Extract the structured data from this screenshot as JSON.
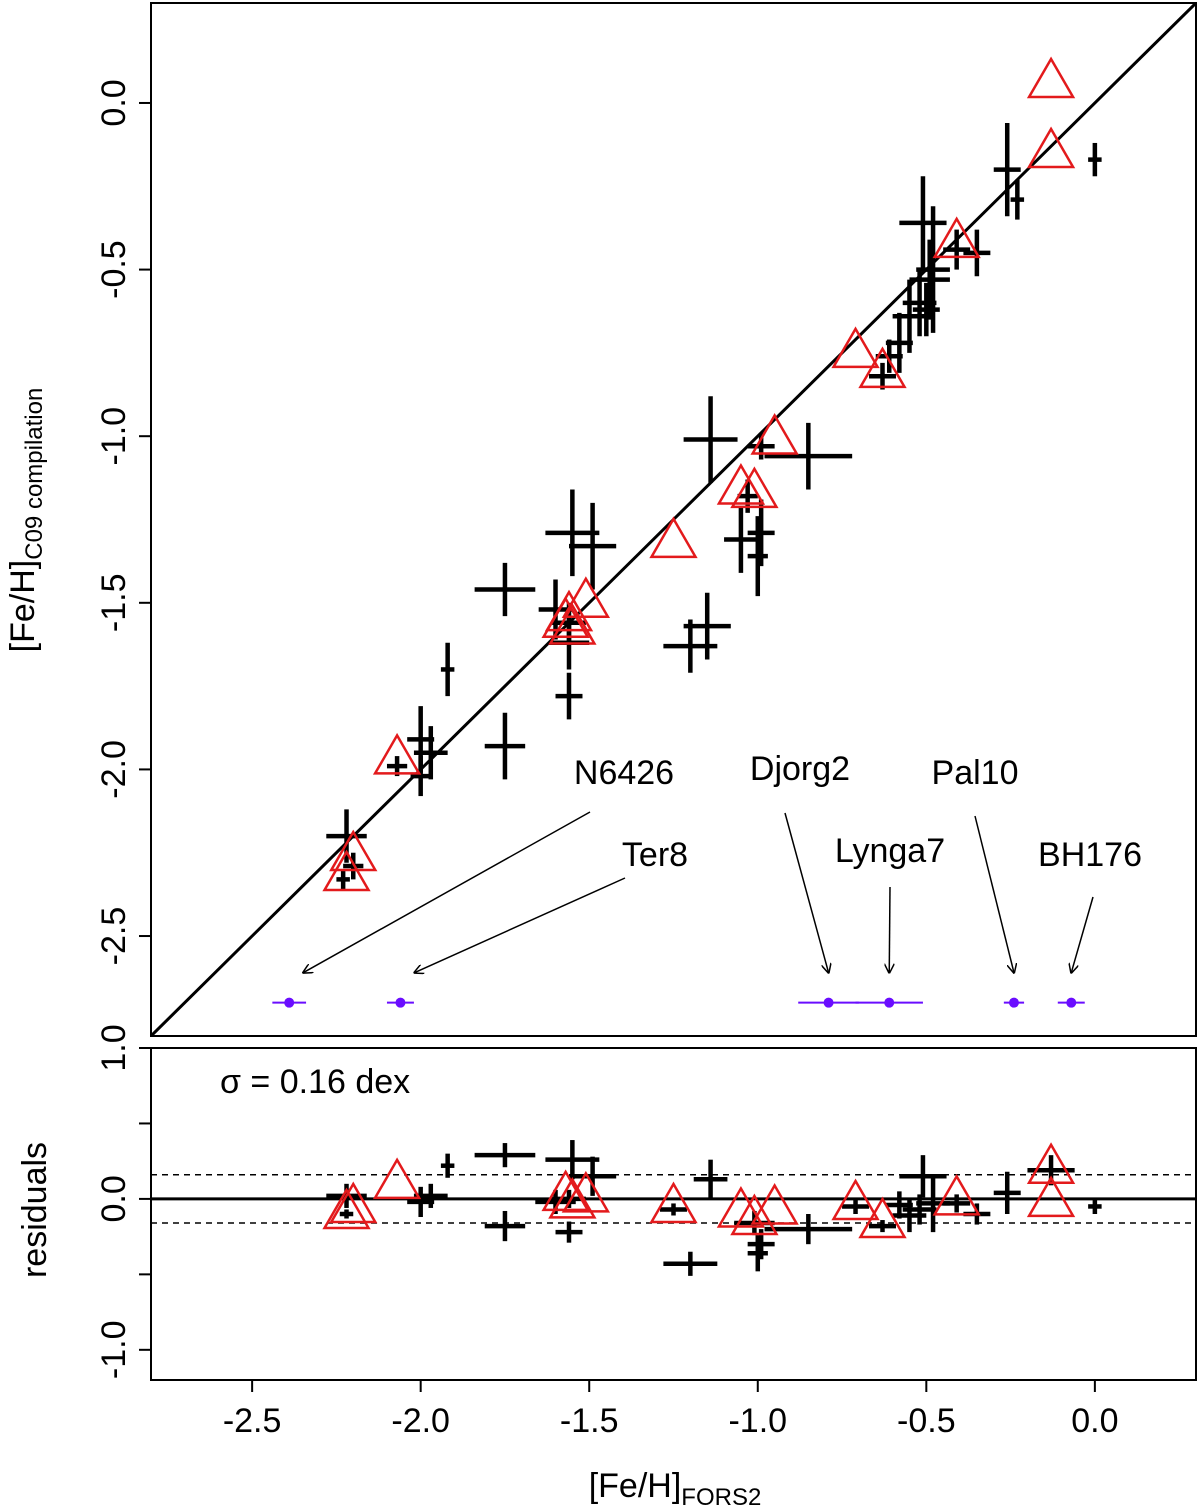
{
  "chart_data": [
    {
      "type": "scatter",
      "panel": "main",
      "xlabel_main": "[Fe/H]",
      "xlabel_sub": "FORS2",
      "ylabel_main": "[Fe/H]",
      "ylabel_sub": "C09 compilation",
      "xlim": [
        -2.8,
        0.3
      ],
      "ylim": [
        -2.8,
        0.3
      ],
      "x_ticks": [
        "-2.5",
        "-2.0",
        "-1.5",
        "-1.0",
        "-0.5",
        "0.0"
      ],
      "x_tick_values": [
        -2.5,
        -2.0,
        -1.5,
        -1.0,
        -0.5,
        0.0
      ],
      "y_ticks": [
        "-2.5",
        "-2.0",
        "-1.5",
        "-1.0",
        "-0.5",
        "0.0"
      ],
      "y_tick_values": [
        -2.5,
        -2.0,
        -1.5,
        -1.0,
        -0.5,
        0.0
      ],
      "identity_line": true,
      "colors": {
        "points": "#000000",
        "triangles": "#e31a1c",
        "upper_limits": "#6a0dff"
      },
      "series": [
        {
          "marker": "cross",
          "points": [
            {
              "x": 0.0,
              "y": -0.17,
              "xerr": 0.02,
              "yerr": 0.05
            },
            {
              "x": -0.26,
              "y": -0.2,
              "xerr": 0.04,
              "yerr": 0.14
            },
            {
              "x": -0.23,
              "y": -0.29,
              "xerr": 0.02,
              "yerr": 0.06
            },
            {
              "x": -0.51,
              "y": -0.36,
              "xerr": 0.07,
              "yerr": 0.14
            },
            {
              "x": -0.48,
              "y": -0.5,
              "xerr": 0.05,
              "yerr": 0.19
            },
            {
              "x": -0.49,
              "y": -0.53,
              "xerr": 0.06,
              "yerr": 0.12
            },
            {
              "x": -0.52,
              "y": -0.6,
              "xerr": 0.05,
              "yerr": 0.1
            },
            {
              "x": -0.5,
              "y": -0.62,
              "xerr": 0.04,
              "yerr": 0.08
            },
            {
              "x": -0.55,
              "y": -0.64,
              "xerr": 0.05,
              "yerr": 0.11
            },
            {
              "x": -0.58,
              "y": -0.72,
              "xerr": 0.04,
              "yerr": 0.09
            },
            {
              "x": -0.61,
              "y": -0.76,
              "xerr": 0.04,
              "yerr": 0.05
            },
            {
              "x": -0.63,
              "y": -0.82,
              "xerr": 0.04,
              "yerr": 0.04
            },
            {
              "x": -0.41,
              "y": -0.44,
              "xerr": 0.04,
              "yerr": 0.06
            },
            {
              "x": -0.35,
              "y": -0.45,
              "xerr": 0.04,
              "yerr": 0.07
            },
            {
              "x": -1.14,
              "y": -1.01,
              "xerr": 0.08,
              "yerr": 0.13
            },
            {
              "x": -0.85,
              "y": -1.06,
              "xerr": 0.13,
              "yerr": 0.1
            },
            {
              "x": -0.99,
              "y": -1.03,
              "xerr": 0.04,
              "yerr": 0.04
            },
            {
              "x": -1.05,
              "y": -1.31,
              "xerr": 0.05,
              "yerr": 0.1
            },
            {
              "x": -0.99,
              "y": -1.29,
              "xerr": 0.04,
              "yerr": 0.1
            },
            {
              "x": -1.0,
              "y": -1.36,
              "xerr": 0.03,
              "yerr": 0.12
            },
            {
              "x": -1.03,
              "y": -1.18,
              "xerr": 0.03,
              "yerr": 0.05
            },
            {
              "x": -1.6,
              "y": -1.52,
              "xerr": 0.05,
              "yerr": 0.09
            },
            {
              "x": -1.55,
              "y": -1.29,
              "xerr": 0.08,
              "yerr": 0.13
            },
            {
              "x": -1.49,
              "y": -1.33,
              "xerr": 0.07,
              "yerr": 0.13
            },
            {
              "x": -1.75,
              "y": -1.46,
              "xerr": 0.09,
              "yerr": 0.08
            },
            {
              "x": -1.56,
              "y": -1.62,
              "xerr": 0.06,
              "yerr": 0.08
            },
            {
              "x": -1.56,
              "y": -1.56,
              "xerr": 0.05,
              "yerr": 0.06
            },
            {
              "x": -1.2,
              "y": -1.63,
              "xerr": 0.08,
              "yerr": 0.08
            },
            {
              "x": -1.15,
              "y": -1.57,
              "xerr": 0.07,
              "yerr": 0.1
            },
            {
              "x": -1.56,
              "y": -1.78,
              "xerr": 0.04,
              "yerr": 0.07
            },
            {
              "x": -1.75,
              "y": -1.93,
              "xerr": 0.06,
              "yerr": 0.1
            },
            {
              "x": -1.92,
              "y": -1.7,
              "xerr": 0.02,
              "yerr": 0.08
            },
            {
              "x": -1.97,
              "y": -1.95,
              "xerr": 0.05,
              "yerr": 0.08
            },
            {
              "x": -2.0,
              "y": -1.91,
              "xerr": 0.04,
              "yerr": 0.1
            },
            {
              "x": -2.0,
              "y": -2.02,
              "xerr": 0.03,
              "yerr": 0.06
            },
            {
              "x": -2.07,
              "y": -1.99,
              "xerr": 0.03,
              "yerr": 0.03
            },
            {
              "x": -2.22,
              "y": -2.2,
              "xerr": 0.06,
              "yerr": 0.08
            },
            {
              "x": -2.2,
              "y": -2.29,
              "xerr": 0.03,
              "yerr": 0.04
            },
            {
              "x": -2.23,
              "y": -2.33,
              "xerr": 0.02,
              "yerr": 0.03
            }
          ]
        },
        {
          "marker": "open-triangle",
          "points": [
            {
              "x": -0.13,
              "y": 0.06
            },
            {
              "x": -0.13,
              "y": -0.15
            },
            {
              "x": -0.41,
              "y": -0.42
            },
            {
              "x": -0.71,
              "y": -0.75
            },
            {
              "x": -0.63,
              "y": -0.81
            },
            {
              "x": -0.95,
              "y": -1.01
            },
            {
              "x": -1.05,
              "y": -1.16
            },
            {
              "x": -1.01,
              "y": -1.17
            },
            {
              "x": -1.25,
              "y": -1.32
            },
            {
              "x": -1.51,
              "y": -1.5
            },
            {
              "x": -1.56,
              "y": -1.54
            },
            {
              "x": -1.57,
              "y": -1.56
            },
            {
              "x": -1.55,
              "y": -1.58
            },
            {
              "x": -2.07,
              "y": -1.97
            },
            {
              "x": -2.2,
              "y": -2.26
            },
            {
              "x": -2.22,
              "y": -2.32
            }
          ]
        },
        {
          "marker": "upper-limit",
          "points": [
            {
              "x": -2.39,
              "y": -2.7,
              "xerr": 0.05,
              "label": "N6426"
            },
            {
              "x": -2.06,
              "y": -2.7,
              "xerr": 0.04,
              "label": "Ter8"
            },
            {
              "x": -0.79,
              "y": -2.7,
              "xerr": 0.09,
              "label": "Djorg2"
            },
            {
              "x": -0.61,
              "y": -2.7,
              "xerr": 0.1,
              "label": "Lynga7"
            },
            {
              "x": -0.24,
              "y": -2.7,
              "xerr": 0.03,
              "label": "Pal10"
            },
            {
              "x": -0.07,
              "y": -2.7,
              "xerr": 0.04,
              "label": "BH176"
            }
          ]
        }
      ]
    },
    {
      "type": "scatter",
      "panel": "residuals",
      "ylabel": "residuals",
      "annotation": "σ = 0.16 dex",
      "xlim": [
        -2.8,
        0.3
      ],
      "ylim": [
        -1.2,
        1.0
      ],
      "y_ticks": [
        "-1.0",
        "",
        "0.0",
        "",
        "1.0"
      ],
      "y_tick_values": [
        -1.0,
        -0.5,
        0.0,
        0.5,
        1.0
      ],
      "hlines": [
        {
          "y": 0.0,
          "style": "solid"
        },
        {
          "y": 0.16,
          "style": "dashed"
        },
        {
          "y": -0.16,
          "style": "dashed"
        }
      ],
      "series": [
        {
          "marker": "cross",
          "points": [
            {
              "x": 0.0,
              "y": -0.05,
              "xerr": 0.02,
              "yerr": 0.05
            },
            {
              "x": -0.13,
              "y": 0.19,
              "xerr": 0.07,
              "yerr": 0.1
            },
            {
              "x": -0.26,
              "y": 0.04,
              "xerr": 0.04,
              "yerr": 0.14
            },
            {
              "x": -0.35,
              "y": -0.1,
              "xerr": 0.04,
              "yerr": 0.07
            },
            {
              "x": -0.41,
              "y": -0.03,
              "xerr": 0.04,
              "yerr": 0.06
            },
            {
              "x": -0.51,
              "y": 0.15,
              "xerr": 0.07,
              "yerr": 0.14
            },
            {
              "x": -0.48,
              "y": -0.03,
              "xerr": 0.05,
              "yerr": 0.19
            },
            {
              "x": -0.52,
              "y": -0.07,
              "xerr": 0.05,
              "yerr": 0.1
            },
            {
              "x": -0.55,
              "y": -0.11,
              "xerr": 0.05,
              "yerr": 0.11
            },
            {
              "x": -0.58,
              "y": -0.04,
              "xerr": 0.04,
              "yerr": 0.09
            },
            {
              "x": -0.63,
              "y": -0.18,
              "xerr": 0.04,
              "yerr": 0.04
            },
            {
              "x": -0.71,
              "y": -0.05,
              "xerr": 0.04,
              "yerr": 0.05
            },
            {
              "x": -0.85,
              "y": -0.2,
              "xerr": 0.13,
              "yerr": 0.1
            },
            {
              "x": -0.99,
              "y": -0.3,
              "xerr": 0.04,
              "yerr": 0.1
            },
            {
              "x": -1.0,
              "y": -0.36,
              "xerr": 0.03,
              "yerr": 0.12
            },
            {
              "x": -1.01,
              "y": -0.16,
              "xerr": 0.06,
              "yerr": 0.08
            },
            {
              "x": -1.14,
              "y": 0.13,
              "xerr": 0.05,
              "yerr": 0.13
            },
            {
              "x": -1.2,
              "y": -0.43,
              "xerr": 0.08,
              "yerr": 0.08
            },
            {
              "x": -1.25,
              "y": -0.07,
              "xerr": 0.04,
              "yerr": 0.04
            },
            {
              "x": -1.49,
              "y": 0.15,
              "xerr": 0.07,
              "yerr": 0.13
            },
            {
              "x": -1.55,
              "y": 0.26,
              "xerr": 0.08,
              "yerr": 0.13
            },
            {
              "x": -1.56,
              "y": 0.0,
              "xerr": 0.05,
              "yerr": 0.06
            },
            {
              "x": -1.6,
              "y": -0.02,
              "xerr": 0.06,
              "yerr": 0.08
            },
            {
              "x": -1.56,
              "y": -0.22,
              "xerr": 0.04,
              "yerr": 0.07
            },
            {
              "x": -1.75,
              "y": 0.29,
              "xerr": 0.09,
              "yerr": 0.08
            },
            {
              "x": -1.75,
              "y": -0.18,
              "xerr": 0.06,
              "yerr": 0.1
            },
            {
              "x": -1.92,
              "y": 0.22,
              "xerr": 0.02,
              "yerr": 0.08
            },
            {
              "x": -1.97,
              "y": 0.02,
              "xerr": 0.05,
              "yerr": 0.08
            },
            {
              "x": -2.0,
              "y": -0.02,
              "xerr": 0.04,
              "yerr": 0.1
            },
            {
              "x": -2.22,
              "y": 0.02,
              "xerr": 0.06,
              "yerr": 0.08
            },
            {
              "x": -2.22,
              "y": -0.1,
              "xerr": 0.02,
              "yerr": 0.03
            }
          ]
        },
        {
          "marker": "open-triangle",
          "points": [
            {
              "x": -0.13,
              "y": 0.2
            },
            {
              "x": -0.13,
              "y": -0.02
            },
            {
              "x": -0.41,
              "y": -0.01
            },
            {
              "x": -0.63,
              "y": -0.16
            },
            {
              "x": -0.71,
              "y": -0.04
            },
            {
              "x": -0.95,
              "y": -0.07
            },
            {
              "x": -1.01,
              "y": -0.14
            },
            {
              "x": -1.05,
              "y": -0.09
            },
            {
              "x": -1.25,
              "y": -0.06
            },
            {
              "x": -1.51,
              "y": 0.01
            },
            {
              "x": -1.55,
              "y": -0.03
            },
            {
              "x": -1.57,
              "y": 0.02
            },
            {
              "x": -2.07,
              "y": 0.1
            },
            {
              "x": -2.2,
              "y": -0.06
            },
            {
              "x": -2.22,
              "y": -0.1
            }
          ]
        }
      ]
    }
  ]
}
